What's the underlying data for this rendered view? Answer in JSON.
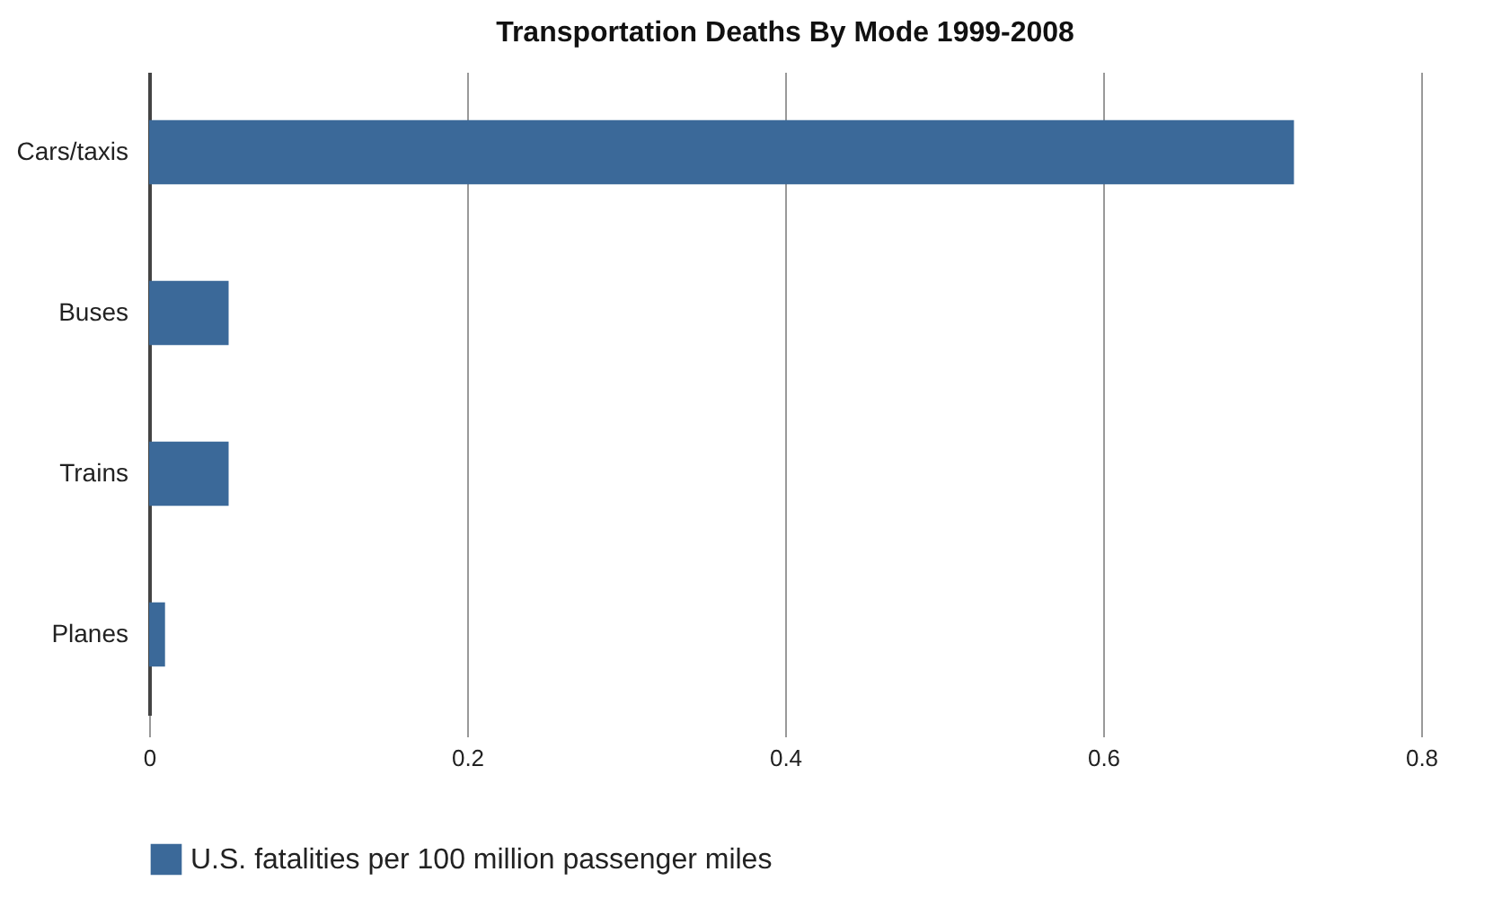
{
  "chart_data": {
    "type": "bar",
    "orientation": "horizontal",
    "title": "Transportation Deaths By Mode 1999-2008",
    "categories": [
      "Cars/taxis",
      "Buses",
      "Trains",
      "Planes"
    ],
    "series": [
      {
        "name": "U.S. fatalities per 100 million passenger miles",
        "color": "#3b6999",
        "values": [
          0.72,
          0.05,
          0.05,
          0.01
        ]
      }
    ],
    "xlim": [
      0,
      0.8
    ],
    "xticks": [
      0,
      0.2,
      0.4,
      0.6,
      0.8
    ],
    "grid": "x",
    "legend": "bottom"
  }
}
